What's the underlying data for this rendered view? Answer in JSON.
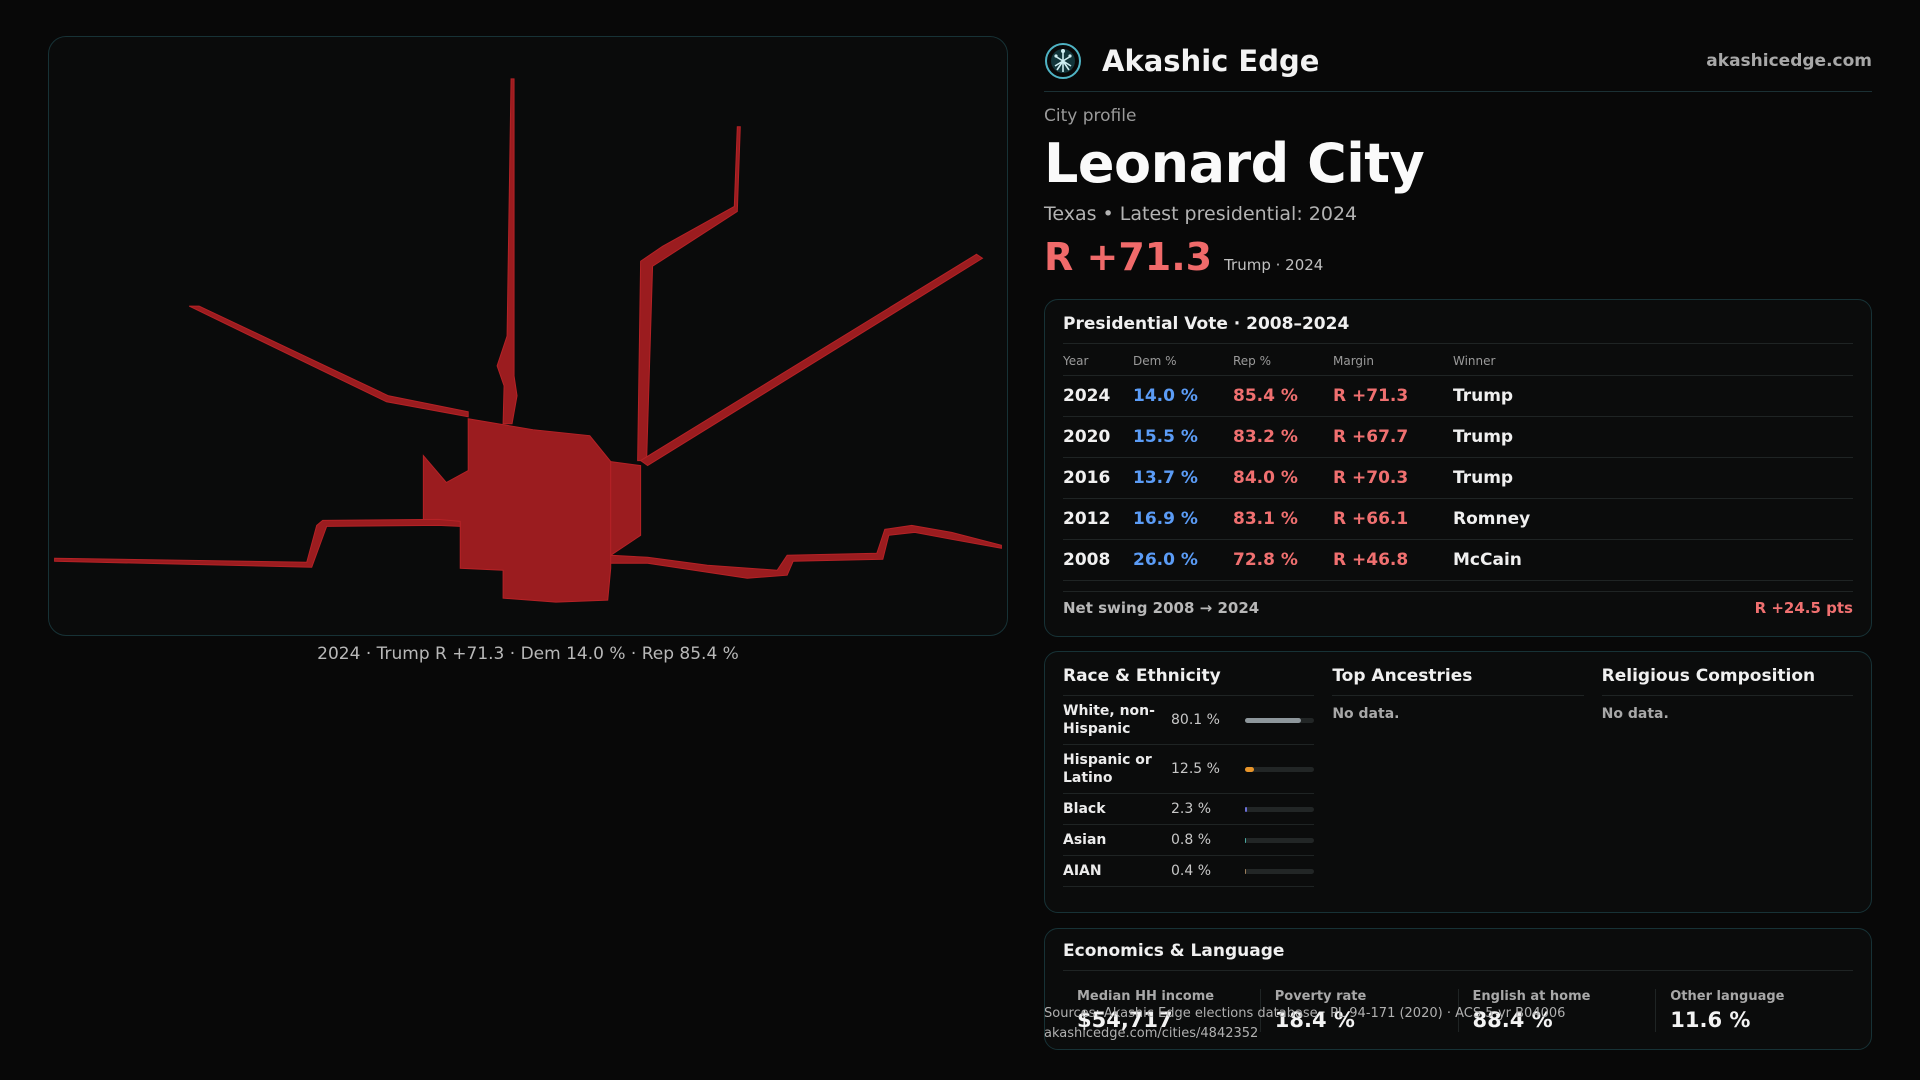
{
  "map": {
    "caption": "2024 · Trump  R +71.3 · Dem 14.0 % · Rep 85.4 %",
    "fill_color": "#9b1c1f"
  },
  "brand": {
    "name": "Akashic Edge",
    "url": "akashicedge.com",
    "logo_icon": "globe-network-icon"
  },
  "profile": {
    "kicker": "City profile",
    "city": "Leonard City",
    "subtitle": "Texas  • Latest presidential: 2024",
    "margin": "R +71.3",
    "margin_note": "Trump · 2024"
  },
  "presidential": {
    "title": "Presidential Vote · 2008–2024",
    "columns": [
      "Year",
      "Dem %",
      "Rep %",
      "Margin",
      "Winner"
    ],
    "rows": [
      {
        "year": "2024",
        "dem": "14.0 %",
        "rep": "85.4 %",
        "margin": "R +71.3",
        "winner": "Trump"
      },
      {
        "year": "2020",
        "dem": "15.5 %",
        "rep": "83.2 %",
        "margin": "R +67.7",
        "winner": "Trump"
      },
      {
        "year": "2016",
        "dem": "13.7 %",
        "rep": "84.0 %",
        "margin": "R +70.3",
        "winner": "Trump"
      },
      {
        "year": "2012",
        "dem": "16.9 %",
        "rep": "83.1 %",
        "margin": "R +66.1",
        "winner": "Romney"
      },
      {
        "year": "2008",
        "dem": "26.0 %",
        "rep": "72.8 %",
        "margin": "R +46.8",
        "winner": "McCain"
      }
    ],
    "swing_label": "Net swing 2008 → 2024",
    "swing_value": "R +24.5 pts",
    "colors": {
      "dem": "#5b9cf6",
      "rep": "#f07070"
    }
  },
  "race": {
    "title": "Race & Ethnicity",
    "rows": [
      {
        "label": "White, non-Hispanic",
        "pct": "80.1 %",
        "value": 80.1,
        "color": "#8e979c"
      },
      {
        "label": "Hispanic or Latino",
        "pct": "12.5 %",
        "value": 12.5,
        "color": "#e8952a"
      },
      {
        "label": "Black",
        "pct": "2.3 %",
        "value": 2.3,
        "color": "#6a6fd6"
      },
      {
        "label": "Asian",
        "pct": "0.8 %",
        "value": 0.8,
        "color": "#4aa8a0"
      },
      {
        "label": "AIAN",
        "pct": "0.4 %",
        "value": 0.4,
        "color": "#9a7c5a"
      }
    ]
  },
  "ancestries": {
    "title": "Top Ancestries",
    "empty": "No data."
  },
  "religion": {
    "title": "Religious Composition",
    "empty": "No data."
  },
  "economics": {
    "title": "Economics & Language",
    "items": [
      {
        "label": "Median HH income",
        "value": "$54,717"
      },
      {
        "label": "Poverty rate",
        "value": "18.4 %"
      },
      {
        "label": "English at home",
        "value": "88.4 %"
      },
      {
        "label": "Other language",
        "value": "11.6 %"
      }
    ]
  },
  "footer": {
    "source": "Sources: Akashic Edge elections database · PL 94-171 (2020) · ACS 5-yr B04006",
    "link": "akashicedge.com/cities/4842352"
  }
}
